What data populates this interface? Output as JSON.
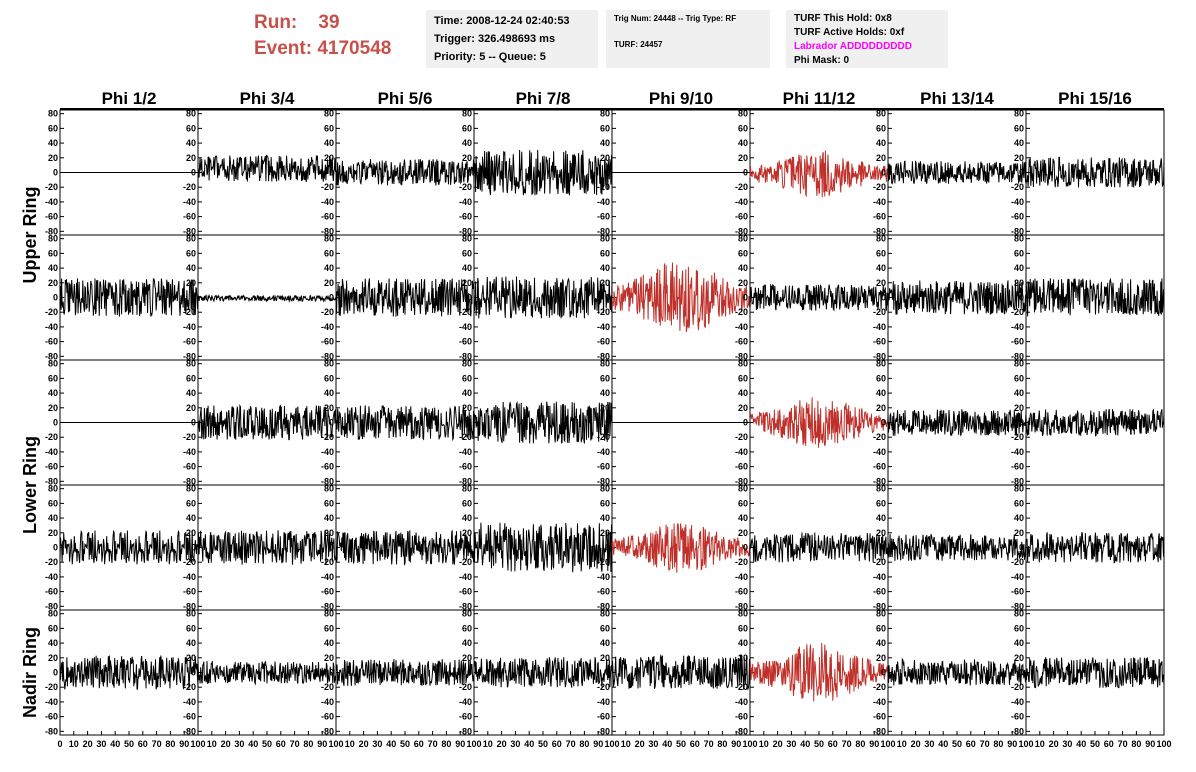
{
  "header": {
    "run_label": "Run:",
    "run_value": "39",
    "event_label": "Event:",
    "event_value": "4170548",
    "time": "Time: 2008-12-24 02:40:53",
    "trigger": "Trigger: 326.498693 ms",
    "priority": "Priority: 5 -- Queue: 5",
    "trig_num": "Trig Num: 24448 -- Trig Type: RF",
    "turf": "TURF: 24457",
    "turf_hold": "TURF This Hold: 0x8",
    "turf_active": "TURF Active Holds: 0xf",
    "labrador": "Labrador ADDDDDDDDD",
    "phi_mask": "Phi Mask: 0"
  },
  "colors": {
    "header_red": "#c8504b",
    "trace_normal": "#000000",
    "trace_triggered": "#c0302a",
    "labrador": "#ff00ff",
    "box_bg": "#f0f0f0"
  },
  "chart_data": {
    "type": "line",
    "columns": [
      "Phi 1/2",
      "Phi 3/4",
      "Phi 5/6",
      "Phi 7/8",
      "Phi 9/10",
      "Phi 11/12",
      "Phi 13/14",
      "Phi 15/16"
    ],
    "ring_labels": [
      {
        "label": "Upper Ring",
        "rows": [
          0,
          1
        ]
      },
      {
        "label": "Lower Ring",
        "rows": [
          2,
          3
        ]
      },
      {
        "label": "Nadir Ring",
        "rows": [
          4
        ]
      }
    ],
    "xlim": [
      0,
      100
    ],
    "ylim": [
      -85,
      85
    ],
    "x_ticks": [
      0,
      10,
      20,
      30,
      40,
      50,
      60,
      70,
      80,
      90,
      100
    ],
    "y_ticks": [
      -80,
      -60,
      -40,
      -20,
      0,
      20,
      40,
      60,
      80
    ],
    "traces": [
      [
        {
          "amp": 0,
          "flat": true
        },
        {
          "amp": 14,
          "offset": 5
        },
        {
          "amp": 14
        },
        {
          "amp": 24
        },
        {
          "amp": 0,
          "flat": true
        },
        {
          "amp": 20,
          "trig": true,
          "env": true,
          "offset": -2
        },
        {
          "amp": 12
        },
        {
          "amp": 16
        }
      ],
      [
        {
          "amp": 20
        },
        {
          "amp": 3,
          "offset": -1
        },
        {
          "amp": 20
        },
        {
          "amp": 22
        },
        {
          "amp": 32,
          "trig": true,
          "env": true
        },
        {
          "amp": 14
        },
        {
          "amp": 18
        },
        {
          "amp": 20
        }
      ],
      [
        {
          "amp": 0,
          "flat": true
        },
        {
          "amp": 18
        },
        {
          "amp": 18
        },
        {
          "amp": 22
        },
        {
          "amp": 0,
          "flat": true
        },
        {
          "amp": 22,
          "trig": true,
          "env": true
        },
        {
          "amp": 14
        },
        {
          "amp": 14
        }
      ],
      [
        {
          "amp": 18
        },
        {
          "amp": 18
        },
        {
          "amp": 18
        },
        {
          "amp": 26
        },
        {
          "amp": 22,
          "trig": true,
          "env": true
        },
        {
          "amp": 16
        },
        {
          "amp": 14
        },
        {
          "amp": 16
        }
      ],
      [
        {
          "amp": 18
        },
        {
          "amp": 12
        },
        {
          "amp": 14
        },
        {
          "amp": 16
        },
        {
          "amp": 18
        },
        {
          "amp": 26,
          "trig": true,
          "env": true
        },
        {
          "amp": 14
        },
        {
          "amp": 16
        }
      ]
    ]
  }
}
